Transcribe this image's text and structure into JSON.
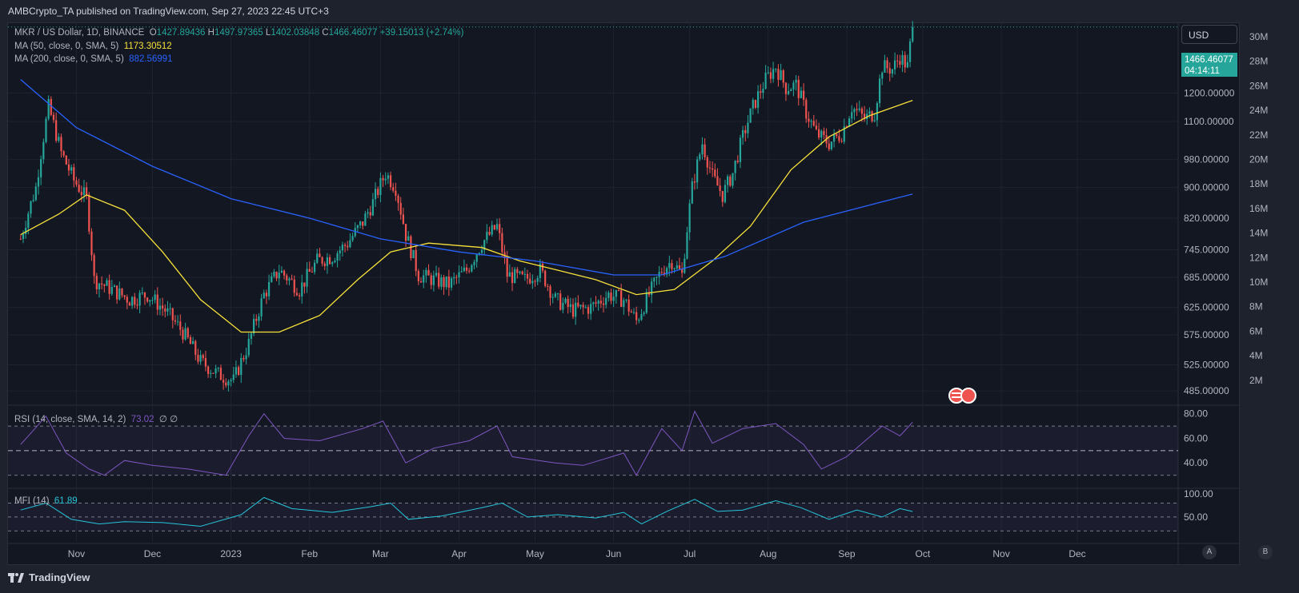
{
  "header": {
    "published": "AMBCrypto_TA published on TradingView.com, Sep 27, 2023 22:45 UTC+3"
  },
  "legend": {
    "symbol": "MKR / US Dollar, 1D, BINANCE",
    "o_label": "O",
    "o": "1427.89436",
    "h_label": "H",
    "h": "1497.97365",
    "l_label": "L",
    "l": "1402.03848",
    "c_label": "C",
    "c": "1466.46077",
    "change": "+39.15013 (+2.74%)",
    "ma50_label": "MA (50, close, 0, SMA, 5)",
    "ma50_value": "1173.30512",
    "ma200_label": "MA (200, close, 0, SMA, 5)",
    "ma200_value": "882.56991",
    "rsi_label": "RSI (14, close, SMA, 14, 2)",
    "rsi_value": "73.02",
    "rsi_extra": "∅ ∅",
    "mfi_label": "MFI (14)",
    "mfi_value": "61.89"
  },
  "currency_button": "USD",
  "price_tag": {
    "price": "1466.46077",
    "countdown": "04:14:11"
  },
  "footer": {
    "brand": "TradingView",
    "pane_a": "A",
    "pane_b": "B"
  },
  "colors": {
    "up": "#26a69a",
    "down": "#ef5350",
    "ma50": "#f7e13a",
    "ma200": "#2962ff",
    "rsi": "#7e57c2",
    "mfi": "#26c6da",
    "bg": "#131722",
    "grid": "#1f2330",
    "text": "#b2b5be"
  },
  "chart_data": [
    {
      "type": "candlestick",
      "title": "MKR / US Dollar, 1D, BINANCE",
      "x_ticks": [
        "Nov",
        "Dec",
        "2023",
        "Feb",
        "Mar",
        "Apr",
        "May",
        "Jun",
        "Jul",
        "Aug",
        "Sep",
        "Oct",
        "Nov",
        "Dec"
      ],
      "y_ticks": [
        "1200.00000",
        "1100.00000",
        "980.00000",
        "900.00000",
        "820.00000",
        "745.00000",
        "685.00000",
        "625.00000",
        "575.00000",
        "525.00000",
        "485.00000"
      ],
      "volume_ticks": [
        "30M",
        "28M",
        "26M",
        "24M",
        "22M",
        "20M",
        "18M",
        "16M",
        "14M",
        "12M",
        "10M",
        "8M",
        "6M",
        "4M",
        "2M"
      ],
      "ylim": [
        470,
        1480
      ],
      "y_scale": "log",
      "grid": true,
      "series": [
        {
          "name": "MKR/USD daily close (approx.)",
          "points": [
            [
              "2022-10-10",
              770
            ],
            [
              "2022-10-16",
              900
            ],
            [
              "2022-10-21",
              1150
            ],
            [
              "2022-10-26",
              1000
            ],
            [
              "2022-10-31",
              920
            ],
            [
              "2022-11-05",
              870
            ],
            [
              "2022-11-08",
              680
            ],
            [
              "2022-11-15",
              660
            ],
            [
              "2022-11-22",
              640
            ],
            [
              "2022-11-29",
              650
            ],
            [
              "2022-12-06",
              620
            ],
            [
              "2022-12-13",
              580
            ],
            [
              "2022-12-20",
              530
            ],
            [
              "2022-12-27",
              510
            ],
            [
              "2023-01-02",
              500
            ],
            [
              "2023-01-08",
              560
            ],
            [
              "2023-01-14",
              650
            ],
            [
              "2023-01-20",
              700
            ],
            [
              "2023-01-28",
              660
            ],
            [
              "2023-02-04",
              720
            ],
            [
              "2023-02-10",
              730
            ],
            [
              "2023-02-16",
              760
            ],
            [
              "2023-02-22",
              810
            ],
            [
              "2023-02-26",
              860
            ],
            [
              "2023-03-03",
              940
            ],
            [
              "2023-03-07",
              900
            ],
            [
              "2023-03-11",
              780
            ],
            [
              "2023-03-16",
              690
            ],
            [
              "2023-03-22",
              680
            ],
            [
              "2023-03-28",
              670
            ],
            [
              "2023-04-04",
              700
            ],
            [
              "2023-04-10",
              760
            ],
            [
              "2023-04-16",
              800
            ],
            [
              "2023-04-20",
              690
            ],
            [
              "2023-04-27",
              680
            ],
            [
              "2023-05-03",
              700
            ],
            [
              "2023-05-09",
              640
            ],
            [
              "2023-05-16",
              620
            ],
            [
              "2023-05-23",
              625
            ],
            [
              "2023-05-30",
              650
            ],
            [
              "2023-06-05",
              640
            ],
            [
              "2023-06-10",
              600
            ],
            [
              "2023-06-15",
              650
            ],
            [
              "2023-06-20",
              700
            ],
            [
              "2023-06-24",
              720
            ],
            [
              "2023-06-28",
              690
            ],
            [
              "2023-07-02",
              900
            ],
            [
              "2023-07-06",
              1030
            ],
            [
              "2023-07-10",
              930
            ],
            [
              "2023-07-14",
              880
            ],
            [
              "2023-07-18",
              940
            ],
            [
              "2023-07-22",
              1050
            ],
            [
              "2023-07-26",
              1150
            ],
            [
              "2023-07-31",
              1250
            ],
            [
              "2023-08-04",
              1300
            ],
            [
              "2023-08-08",
              1220
            ],
            [
              "2023-08-12",
              1230
            ],
            [
              "2023-08-16",
              1130
            ],
            [
              "2023-08-20",
              1060
            ],
            [
              "2023-08-25",
              1030
            ],
            [
              "2023-08-30",
              1060
            ],
            [
              "2023-09-03",
              1150
            ],
            [
              "2023-09-08",
              1110
            ],
            [
              "2023-09-12",
              1130
            ],
            [
              "2023-09-15",
              1300
            ],
            [
              "2023-09-19",
              1290
            ],
            [
              "2023-09-22",
              1340
            ],
            [
              "2023-09-25",
              1300
            ],
            [
              "2023-09-27",
              1466
            ]
          ]
        },
        {
          "name": "MA (50, close, 0, SMA, 5)",
          "points": [
            [
              "2022-10-10",
              780
            ],
            [
              "2022-10-25",
              830
            ],
            [
              "2022-11-05",
              880
            ],
            [
              "2022-11-20",
              840
            ],
            [
              "2022-12-05",
              740
            ],
            [
              "2022-12-20",
              640
            ],
            [
              "2023-01-05",
              580
            ],
            [
              "2023-01-20",
              580
            ],
            [
              "2023-02-05",
              610
            ],
            [
              "2023-02-20",
              680
            ],
            [
              "2023-03-05",
              740
            ],
            [
              "2023-03-20",
              760
            ],
            [
              "2023-04-10",
              750
            ],
            [
              "2023-04-25",
              720
            ],
            [
              "2023-05-10",
              700
            ],
            [
              "2023-05-25",
              680
            ],
            [
              "2023-06-10",
              650
            ],
            [
              "2023-06-25",
              660
            ],
            [
              "2023-07-10",
              720
            ],
            [
              "2023-07-25",
              800
            ],
            [
              "2023-08-10",
              950
            ],
            [
              "2023-08-25",
              1050
            ],
            [
              "2023-09-10",
              1120
            ],
            [
              "2023-09-27",
              1173.30512
            ]
          ]
        },
        {
          "name": "MA (200, close, 0, SMA, 5)",
          "points": [
            [
              "2022-10-10",
              1250
            ],
            [
              "2022-11-01",
              1080
            ],
            [
              "2022-12-01",
              960
            ],
            [
              "2023-01-01",
              870
            ],
            [
              "2023-02-01",
              820
            ],
            [
              "2023-03-01",
              770
            ],
            [
              "2023-04-01",
              740
            ],
            [
              "2023-05-01",
              720
            ],
            [
              "2023-06-01",
              690
            ],
            [
              "2023-06-20",
              690
            ],
            [
              "2023-07-15",
              730
            ],
            [
              "2023-08-15",
              810
            ],
            [
              "2023-09-27",
              882.56991
            ]
          ]
        }
      ]
    },
    {
      "type": "line",
      "title": "RSI (14, close, SMA, 14, 2)",
      "y_ticks": [
        "80.00",
        "60.00",
        "40.00"
      ],
      "ylim": [
        20,
        85
      ],
      "bands": [
        70,
        50,
        30
      ],
      "series": [
        {
          "name": "RSI (14, close, SMA, 14, 2)",
          "points": [
            [
              "2022-10-10",
              55
            ],
            [
              "2022-10-20",
              78
            ],
            [
              "2022-10-28",
              48
            ],
            [
              "2022-11-06",
              35
            ],
            [
              "2022-11-12",
              30
            ],
            [
              "2022-11-20",
              42
            ],
            [
              "2022-12-01",
              38
            ],
            [
              "2022-12-15",
              35
            ],
            [
              "2022-12-30",
              30
            ],
            [
              "2023-01-08",
              62
            ],
            [
              "2023-01-14",
              80
            ],
            [
              "2023-01-22",
              60
            ],
            [
              "2023-02-05",
              58
            ],
            [
              "2023-02-22",
              68
            ],
            [
              "2023-03-02",
              74
            ],
            [
              "2023-03-11",
              40
            ],
            [
              "2023-03-22",
              52
            ],
            [
              "2023-04-05",
              58
            ],
            [
              "2023-04-16",
              70
            ],
            [
              "2023-04-22",
              45
            ],
            [
              "2023-05-09",
              40
            ],
            [
              "2023-05-20",
              38
            ],
            [
              "2023-06-05",
              48
            ],
            [
              "2023-06-10",
              30
            ],
            [
              "2023-06-20",
              68
            ],
            [
              "2023-06-28",
              50
            ],
            [
              "2023-07-03",
              82
            ],
            [
              "2023-07-10",
              56
            ],
            [
              "2023-07-22",
              68
            ],
            [
              "2023-08-04",
              72
            ],
            [
              "2023-08-15",
              55
            ],
            [
              "2023-08-22",
              35
            ],
            [
              "2023-09-01",
              45
            ],
            [
              "2023-09-15",
              70
            ],
            [
              "2023-09-22",
              62
            ],
            [
              "2023-09-27",
              73.02
            ]
          ]
        }
      ]
    },
    {
      "type": "line",
      "title": "MFI (14)",
      "y_ticks": [
        "100.00",
        "50.00"
      ],
      "ylim": [
        0,
        110
      ],
      "bands": [
        80,
        50,
        20
      ],
      "series": [
        {
          "name": "MFI (14)",
          "points": [
            [
              "2022-10-10",
              65
            ],
            [
              "2022-10-20",
              80
            ],
            [
              "2022-10-30",
              45
            ],
            [
              "2022-11-10",
              35
            ],
            [
              "2022-11-20",
              40
            ],
            [
              "2022-12-05",
              38
            ],
            [
              "2022-12-20",
              30
            ],
            [
              "2023-01-05",
              55
            ],
            [
              "2023-01-14",
              92
            ],
            [
              "2023-01-25",
              68
            ],
            [
              "2023-02-10",
              60
            ],
            [
              "2023-02-25",
              72
            ],
            [
              "2023-03-05",
              80
            ],
            [
              "2023-03-12",
              45
            ],
            [
              "2023-03-25",
              52
            ],
            [
              "2023-04-10",
              70
            ],
            [
              "2023-04-18",
              80
            ],
            [
              "2023-04-28",
              50
            ],
            [
              "2023-05-10",
              55
            ],
            [
              "2023-05-25",
              48
            ],
            [
              "2023-06-05",
              60
            ],
            [
              "2023-06-12",
              35
            ],
            [
              "2023-06-22",
              62
            ],
            [
              "2023-07-03",
              88
            ],
            [
              "2023-07-12",
              62
            ],
            [
              "2023-07-22",
              65
            ],
            [
              "2023-08-04",
              85
            ],
            [
              "2023-08-14",
              70
            ],
            [
              "2023-08-25",
              45
            ],
            [
              "2023-09-05",
              65
            ],
            [
              "2023-09-15",
              50
            ],
            [
              "2023-09-22",
              68
            ],
            [
              "2023-09-27",
              61.89
            ]
          ]
        }
      ]
    }
  ]
}
